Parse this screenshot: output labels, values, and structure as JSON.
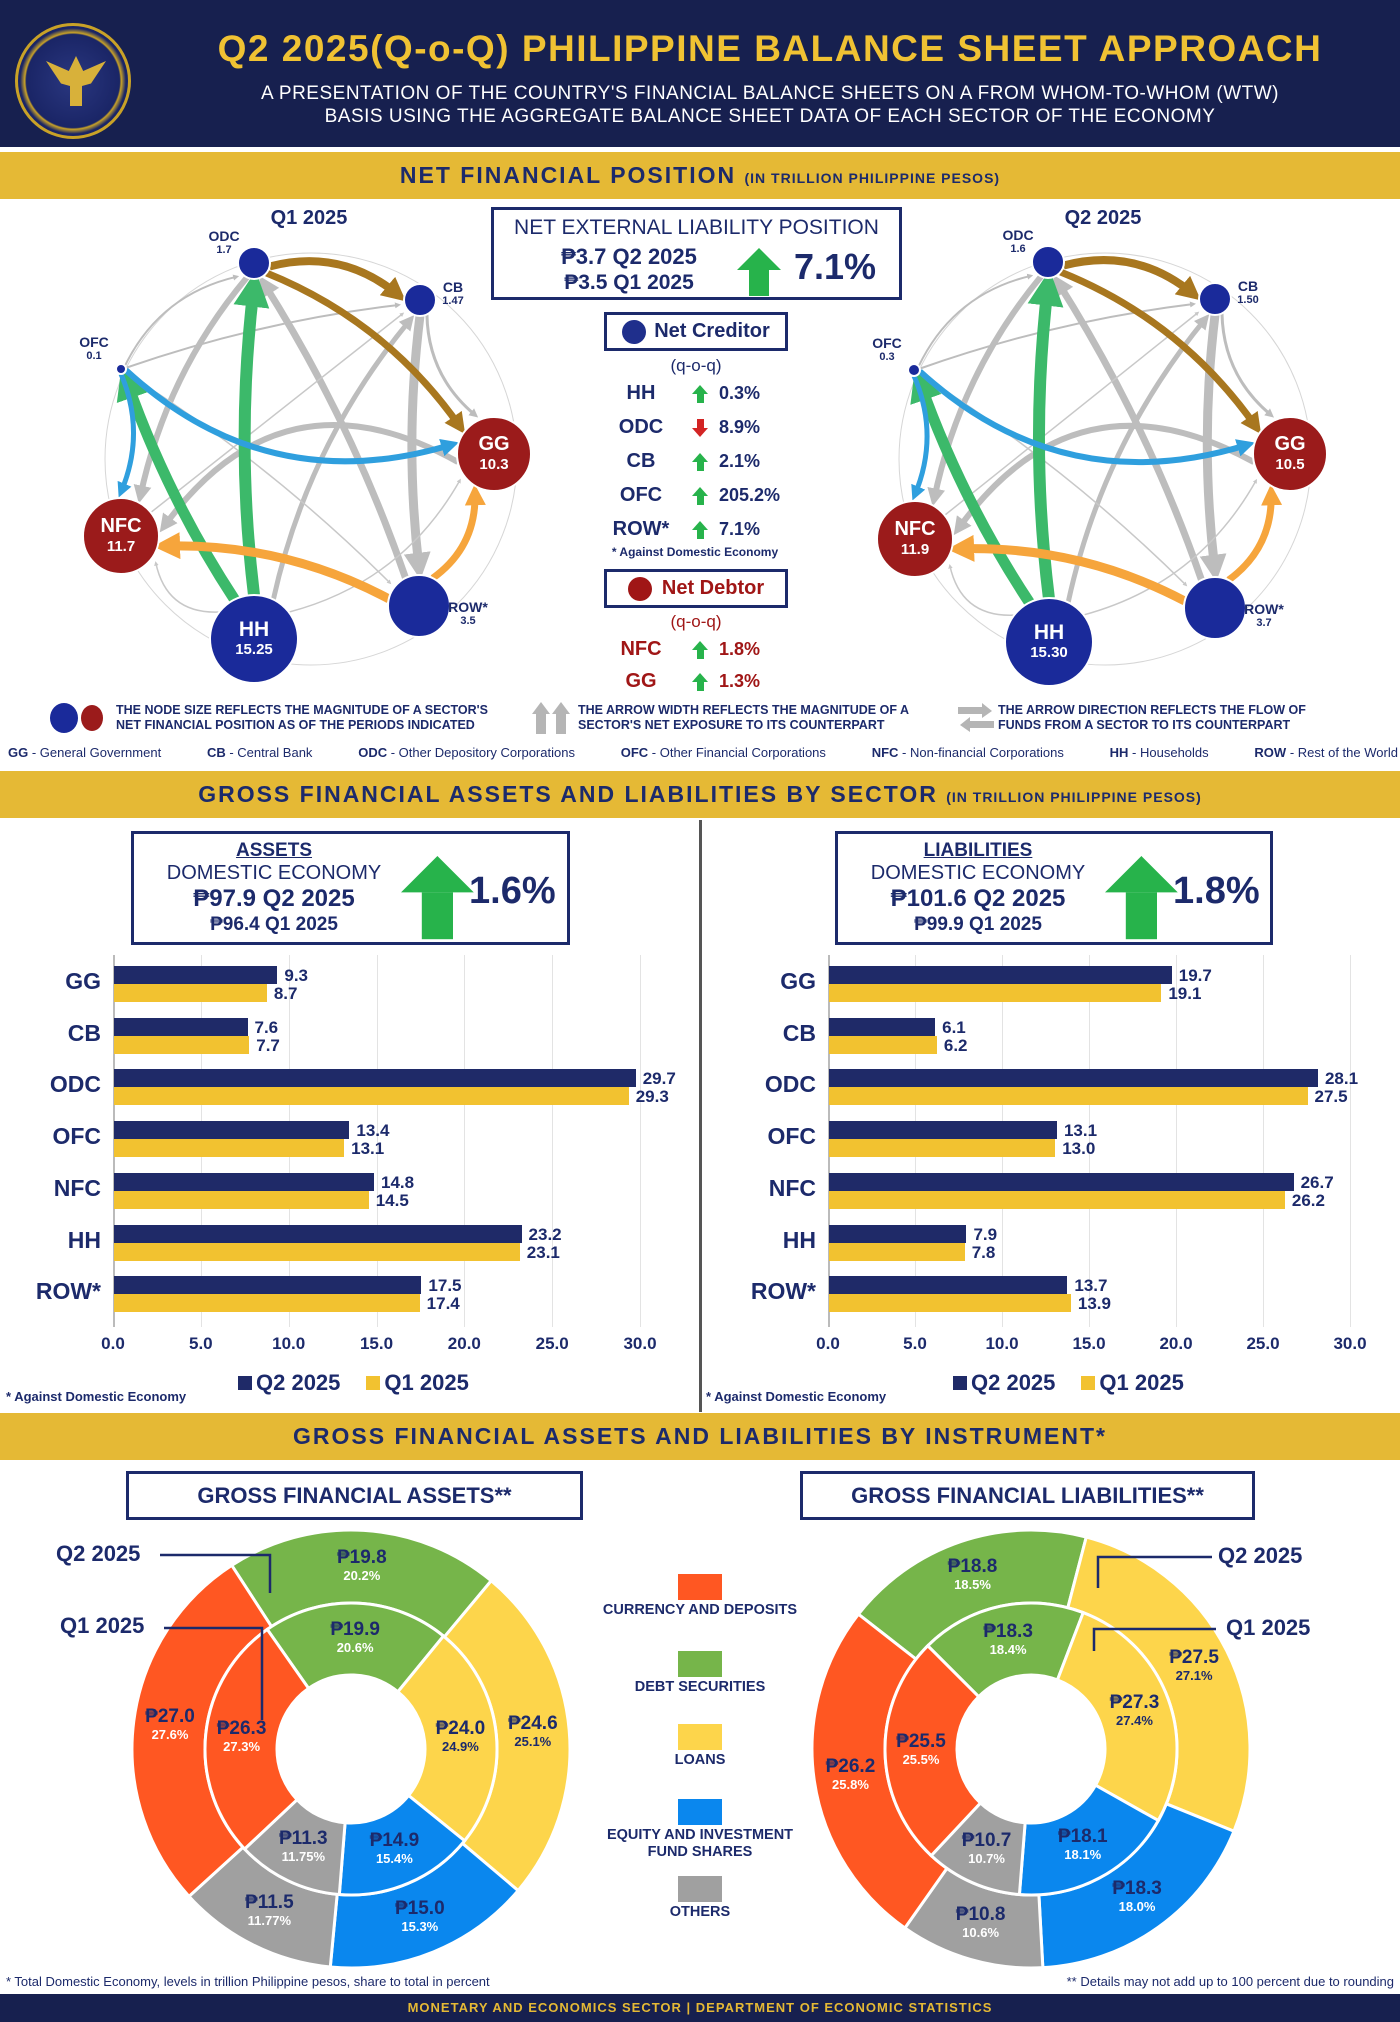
{
  "header": {
    "title": "Q2 2025(Q-o-Q) PHILIPPINE BALANCE SHEET APPROACH",
    "subtitle_line1": "A PRESENTATION OF THE COUNTRY'S FINANCIAL BALANCE SHEETS ON A FROM WHOM-TO-WHOM (WTW)",
    "subtitle_line2": "BASIS USING THE AGGREGATE BALANCE SHEET DATA OF EACH SECTOR OF THE ECONOMY",
    "logo_text": "BANGKO SENTRAL NG PILIPINAS"
  },
  "section1": {
    "title": "NET FINANCIAL POSITION",
    "unit": "(IN TRILLION PHILIPPINE PESOS)",
    "q1_label": "Q1 2025",
    "q2_label": "Q2 2025",
    "q1_nodes": {
      "ODC": "1.7",
      "CB": "1.47",
      "OFC": "0.1",
      "GG": "10.3",
      "NFC": "11.7",
      "HH": "15.25",
      "ROW": "3.5"
    },
    "q2_nodes": {
      "ODC": "1.6",
      "CB": "1.50",
      "OFC": "0.3",
      "GG": "10.5",
      "NFC": "11.9",
      "HH": "15.30",
      "ROW": "3.7"
    },
    "node_names": {
      "ODC": "ODC",
      "CB": "CB",
      "OFC": "OFC",
      "GG": "GG",
      "NFC": "NFC",
      "HH": "HH",
      "ROW": "ROW*"
    },
    "nel": {
      "title": "NET EXTERNAL LIABILITY POSITION",
      "q2": "₱3.7 Q2 2025",
      "q1": "₱3.5 Q1 2025",
      "change": "7.1%",
      "direction": "up"
    },
    "net_creditor": {
      "title": "Net Creditor",
      "qoq": "(q-o-q)",
      "rows": [
        {
          "sector": "HH",
          "direction": "up",
          "value": "0.3%"
        },
        {
          "sector": "ODC",
          "direction": "down",
          "value": "8.9%"
        },
        {
          "sector": "CB",
          "direction": "up",
          "value": "2.1%"
        },
        {
          "sector": "OFC",
          "direction": "up",
          "value": "205.2%"
        },
        {
          "sector": "ROW*",
          "direction": "up",
          "value": "7.1%"
        }
      ],
      "note": "* Against Domestic Economy"
    },
    "net_debtor": {
      "title": "Net Debtor",
      "qoq": "(q-o-q)",
      "rows": [
        {
          "sector": "NFC",
          "direction": "up",
          "value": "1.8%"
        },
        {
          "sector": "GG",
          "direction": "up",
          "value": "1.3%"
        }
      ]
    },
    "legend": {
      "node": "THE NODE SIZE REFLECTS THE MAGNITUDE OF A SECTOR'S NET FINANCIAL POSITION AS OF THE PERIODS INDICATED",
      "width": "THE ARROW WIDTH REFLECTS THE MAGNITUDE OF A SECTOR'S NET EXPOSURE TO ITS COUNTERPART",
      "direction": "THE ARROW DIRECTION REFLECTS THE FLOW OF FUNDS FROM A SECTOR TO ITS COUNTERPART"
    },
    "abbreviations": [
      {
        "code": "GG",
        "name": "- General Government"
      },
      {
        "code": "CB",
        "name": "- Central Bank"
      },
      {
        "code": "ODC",
        "name": "- Other Depository Corporations"
      },
      {
        "code": "OFC",
        "name": "- Other Financial Corporations"
      },
      {
        "code": "NFC",
        "name": "- Non-financial Corporations"
      },
      {
        "code": "HH",
        "name": "- Households"
      },
      {
        "code": "ROW",
        "name": "- Rest of the World"
      }
    ],
    "colors": {
      "creditor": "#1a2a9a",
      "debtor": "#9b1b1b"
    }
  },
  "section2": {
    "title": "GROSS FINANCIAL ASSETS AND LIABILITIES BY SECTOR",
    "unit": "(IN TRILLION PHILIPPINE PESOS)",
    "assets_box": {
      "heading": "ASSETS",
      "sub": "DOMESTIC ECONOMY",
      "q2": "₱97.9 Q2 2025",
      "q1": "₱96.4 Q1 2025",
      "change": "1.6%",
      "direction": "up"
    },
    "liabilities_box": {
      "heading": "LIABILITIES",
      "sub": "DOMESTIC ECONOMY",
      "q2": "₱101.6 Q2 2025",
      "q1": "₱99.9 Q1 2025",
      "change": "1.8%",
      "direction": "up"
    },
    "note": "* Against Domestic Economy"
  },
  "section3": {
    "title": "GROSS FINANCIAL ASSETS AND LIABILITIES BY INSTRUMENT*",
    "assets_title": "GROSS FINANCIAL ASSETS**",
    "liabilities_title": "GROSS FINANCIAL LIABILITIES**",
    "q2_label": "Q2 2025",
    "q1_label": "Q1 2025",
    "legend": [
      "CURRENCY AND DEPOSITS",
      "DEBT SECURITIES",
      "LOANS",
      "EQUITY AND INVESTMENT FUND SHARES",
      "OTHERS"
    ],
    "note_left": "* Total Domestic Economy, levels in trillion Philippine pesos, share to total in percent",
    "note_right": "** Details may not add up to 100 percent due to rounding"
  },
  "footer": "MONETARY AND ECONOMICS SECTOR | DEPARTMENT OF ECONOMIC STATISTICS",
  "chart_data": [
    {
      "type": "bar",
      "orientation": "horizontal",
      "title": "ASSETS",
      "categories": [
        "GG",
        "CB",
        "ODC",
        "OFC",
        "NFC",
        "HH",
        "ROW*"
      ],
      "series": [
        {
          "name": "Q2 2025",
          "color": "#1f2a68",
          "values": [
            9.3,
            7.6,
            29.7,
            13.4,
            14.8,
            23.2,
            17.5
          ]
        },
        {
          "name": "Q1 2025",
          "color": "#f2c230",
          "values": [
            8.7,
            7.7,
            29.3,
            13.1,
            14.5,
            23.1,
            17.4
          ]
        }
      ],
      "xlim": [
        0,
        30
      ],
      "ticks": [
        "0.0",
        "5.0",
        "10.0",
        "15.0",
        "20.0",
        "25.0",
        "30.0"
      ],
      "legend": "bottom",
      "grid": true
    },
    {
      "type": "bar",
      "orientation": "horizontal",
      "title": "LIABILITIES",
      "categories": [
        "GG",
        "CB",
        "ODC",
        "OFC",
        "NFC",
        "HH",
        "ROW*"
      ],
      "series": [
        {
          "name": "Q2 2025",
          "color": "#1f2a68",
          "values": [
            19.7,
            6.1,
            28.1,
            13.1,
            26.7,
            7.9,
            13.7
          ]
        },
        {
          "name": "Q1 2025",
          "color": "#f2c230",
          "values": [
            19.1,
            6.2,
            27.5,
            13.0,
            26.2,
            7.8,
            13.9
          ]
        }
      ],
      "xlim": [
        0,
        30
      ],
      "ticks": [
        "0.0",
        "5.0",
        "10.0",
        "15.0",
        "20.0",
        "25.0",
        "30.0"
      ],
      "legend": "bottom",
      "grid": true
    },
    {
      "type": "pie",
      "variant": "nested-donut",
      "title": "GROSS FINANCIAL ASSETS**",
      "categories": [
        "CURRENCY AND DEPOSITS",
        "DEBT SECURITIES",
        "LOANS",
        "EQUITY AND INVESTMENT FUND SHARES",
        "OTHERS"
      ],
      "colors": [
        "#ff5722",
        "#76b54a",
        "#fdd54b",
        "#0a87ee",
        "#a0a0a0"
      ],
      "outer": {
        "name": "Q2 2025",
        "values": [
          27.0,
          19.8,
          24.6,
          15.0,
          11.5
        ],
        "shares": [
          "27.6%",
          "20.2%",
          "25.1%",
          "15.3%",
          "11.77%"
        ]
      },
      "inner": {
        "name": "Q1 2025",
        "values": [
          26.3,
          19.9,
          24.0,
          14.9,
          11.3
        ],
        "shares": [
          "27.3%",
          "20.6%",
          "24.9%",
          "15.4%",
          "11.75%"
        ]
      }
    },
    {
      "type": "pie",
      "variant": "nested-donut",
      "title": "GROSS FINANCIAL LIABILITIES**",
      "categories": [
        "CURRENCY AND DEPOSITS",
        "DEBT SECURITIES",
        "LOANS",
        "EQUITY AND INVESTMENT FUND SHARES",
        "OTHERS"
      ],
      "colors": [
        "#ff5722",
        "#76b54a",
        "#fdd54b",
        "#0a87ee",
        "#a0a0a0"
      ],
      "outer": {
        "name": "Q2 2025",
        "values": [
          26.2,
          18.8,
          27.5,
          18.3,
          10.8
        ],
        "shares": [
          "25.8%",
          "18.5%",
          "27.1%",
          "18.0%",
          "10.6%"
        ]
      },
      "inner": {
        "name": "Q1 2025",
        "values": [
          25.5,
          18.3,
          27.3,
          18.1,
          10.7
        ],
        "shares": [
          "25.5%",
          "18.4%",
          "27.4%",
          "18.1%",
          "10.7%"
        ]
      }
    }
  ]
}
